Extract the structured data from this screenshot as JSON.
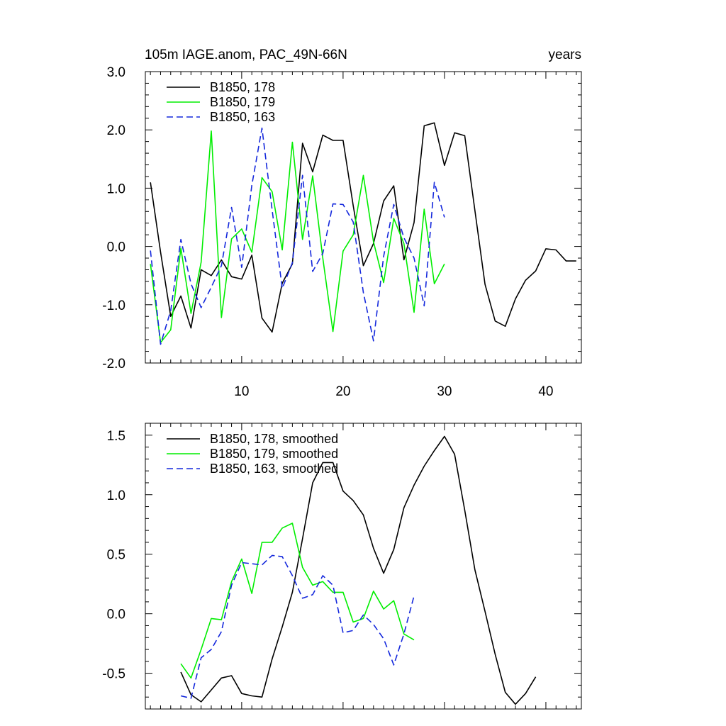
{
  "header": {
    "left": "105m IAGE.anom, PAC_49N-66N",
    "right": "years"
  },
  "chart_data": [
    {
      "type": "line",
      "xlim": [
        0.5,
        43.5
      ],
      "ylim": [
        -2.0,
        3.0
      ],
      "xticks": [
        10,
        20,
        30,
        40
      ],
      "xtick_labels": [
        "10",
        "20",
        "30",
        "40"
      ],
      "yticks": [
        -2,
        -1,
        0,
        1,
        2,
        3
      ],
      "ytick_labels": [
        "-2.0",
        "-1.0",
        "0.0",
        "1.0",
        "2.0",
        "3.0"
      ],
      "legend_position": "top-left",
      "grid": false,
      "series": [
        {
          "name": "B1850, 178",
          "color": "#000000",
          "dash": "solid",
          "x": [
            1,
            2,
            3,
            4,
            5,
            6,
            7,
            8,
            9,
            10,
            11,
            12,
            13,
            14,
            15,
            16,
            17,
            18,
            19,
            20,
            21,
            22,
            23,
            24,
            25,
            26,
            27,
            28,
            29,
            30,
            31,
            32,
            33,
            34,
            35,
            36,
            37,
            38,
            39,
            40,
            41,
            42,
            43
          ],
          "y": [
            1.1,
            -0.1,
            -1.2,
            -0.85,
            -1.4,
            -0.4,
            -0.5,
            -0.23,
            -0.52,
            -0.56,
            -0.15,
            -1.23,
            -1.47,
            -0.63,
            -0.3,
            1.77,
            1.28,
            1.91,
            1.82,
            1.82,
            0.7,
            -0.33,
            0.05,
            0.78,
            1.04,
            -0.23,
            0.41,
            2.07,
            2.12,
            1.39,
            1.95,
            1.9,
            0.62,
            -0.65,
            -1.28,
            -1.37,
            -0.9,
            -0.58,
            -0.42,
            -0.04,
            -0.06,
            -0.25,
            -0.25
          ]
        },
        {
          "name": "B1850, 179",
          "color": "#00ee00",
          "dash": "solid",
          "x": [
            1,
            2,
            3,
            4,
            5,
            6,
            7,
            8,
            9,
            10,
            11,
            12,
            13,
            14,
            15,
            16,
            17,
            18,
            19,
            20,
            21,
            22,
            23,
            24,
            25,
            26,
            27,
            28,
            29,
            30
          ],
          "y": [
            -0.3,
            -1.65,
            -1.43,
            -0.03,
            -1.15,
            -0.27,
            1.98,
            -1.22,
            0.13,
            0.3,
            -0.1,
            1.18,
            0.94,
            -0.06,
            1.79,
            0.12,
            1.21,
            -0.2,
            -1.46,
            -0.08,
            0.2,
            1.22,
            0.08,
            -0.62,
            0.48,
            0.05,
            -1.13,
            0.64,
            -0.64,
            -0.3
          ]
        },
        {
          "name": "B1850, 163",
          "color": "#1428dc",
          "dash": "dashed",
          "x": [
            1,
            2,
            3,
            4,
            5,
            6,
            7,
            8,
            9,
            10,
            11,
            12,
            13,
            14,
            15,
            16,
            17,
            18,
            19,
            20,
            21,
            22,
            23,
            24,
            25,
            26,
            27,
            28,
            29,
            30
          ],
          "y": [
            -0.07,
            -1.68,
            -1.1,
            0.12,
            -0.64,
            -1.05,
            -0.7,
            -0.33,
            0.67,
            -0.36,
            1.05,
            2.03,
            0.63,
            -0.72,
            -0.28,
            1.22,
            -0.43,
            -0.12,
            0.73,
            0.72,
            0.42,
            -0.79,
            -1.62,
            -0.17,
            0.72,
            0.15,
            -0.2,
            -1.02,
            1.1,
            0.5
          ]
        }
      ]
    },
    {
      "type": "line",
      "xlim": [
        0.5,
        43.5
      ],
      "ylim": [
        -0.8,
        1.6
      ],
      "xticks": [
        10,
        20,
        30,
        40
      ],
      "xtick_labels": [
        "",
        "",
        "",
        ""
      ],
      "yticks": [
        -0.5,
        0,
        0.5,
        1.0,
        1.5
      ],
      "ytick_labels": [
        "-0.5",
        "0.0",
        "0.5",
        "1.0",
        "1.5"
      ],
      "legend_position": "top-left",
      "grid": false,
      "series": [
        {
          "name": "B1850, 178, smoothed",
          "color": "#000000",
          "dash": "solid",
          "x": [
            4,
            5,
            6,
            7,
            8,
            9,
            10,
            11,
            12,
            13,
            14,
            15,
            16,
            17,
            18,
            19,
            20,
            21,
            22,
            23,
            24,
            25,
            26,
            27,
            28,
            29,
            30,
            31,
            32,
            33,
            34,
            35,
            36,
            37,
            38,
            39
          ],
          "y": [
            -0.49,
            -0.68,
            -0.74,
            -0.64,
            -0.54,
            -0.52,
            -0.67,
            -0.69,
            -0.7,
            -0.38,
            -0.11,
            0.18,
            0.63,
            1.1,
            1.27,
            1.27,
            1.03,
            0.95,
            0.83,
            0.55,
            0.34,
            0.54,
            0.89,
            1.08,
            1.24,
            1.37,
            1.49,
            1.34,
            0.87,
            0.37,
            0.02,
            -0.34,
            -0.66,
            -0.76,
            -0.67,
            -0.53
          ]
        },
        {
          "name": "B1850, 179, smoothed",
          "color": "#00ee00",
          "dash": "solid",
          "x": [
            4,
            5,
            6,
            7,
            8,
            9,
            10,
            11,
            12,
            13,
            14,
            15,
            16,
            17,
            18,
            19,
            20,
            21,
            22,
            23,
            24,
            25,
            26,
            27
          ],
          "y": [
            -0.42,
            -0.54,
            -0.3,
            -0.04,
            -0.05,
            0.27,
            0.46,
            0.17,
            0.6,
            0.6,
            0.72,
            0.76,
            0.39,
            0.24,
            0.27,
            0.18,
            0.18,
            -0.07,
            -0.04,
            0.19,
            0.04,
            0.11,
            -0.17,
            -0.22
          ]
        },
        {
          "name": "B1850, 163, smoothed",
          "color": "#1428dc",
          "dash": "dashed",
          "x": [
            4,
            5,
            6,
            7,
            8,
            9,
            10,
            11,
            12,
            13,
            14,
            15,
            16,
            17,
            18,
            19,
            20,
            21,
            22,
            23,
            24,
            25,
            26,
            27
          ],
          "y": [
            -0.69,
            -0.71,
            -0.37,
            -0.3,
            -0.15,
            0.24,
            0.43,
            0.42,
            0.41,
            0.49,
            0.48,
            0.32,
            0.13,
            0.16,
            0.32,
            0.24,
            -0.16,
            -0.14,
            -0.01,
            -0.09,
            -0.21,
            -0.43,
            -0.17,
            0.15
          ]
        }
      ]
    }
  ]
}
